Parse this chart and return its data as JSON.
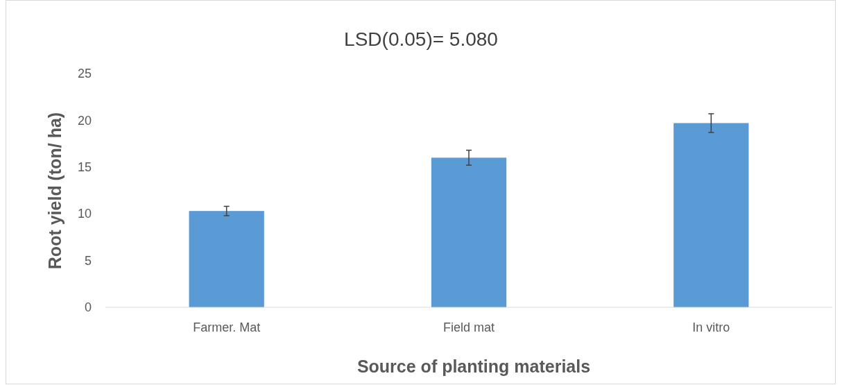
{
  "chart_data": {
    "type": "bar",
    "title": "LSD(0.05)= 5.080",
    "xlabel": "Source of planting materials",
    "ylabel": "Root yield (ton/ ha)",
    "categories": [
      "Farmer. Mat",
      "Field mat",
      "In vitro"
    ],
    "values": [
      10.3,
      16.0,
      19.7
    ],
    "errors": [
      0.5,
      0.8,
      1.0
    ],
    "color": "#5b9bd5",
    "ylim": [
      0,
      25
    ],
    "yticks": [
      0,
      5,
      10,
      15,
      20,
      25
    ],
    "grid": false
  }
}
